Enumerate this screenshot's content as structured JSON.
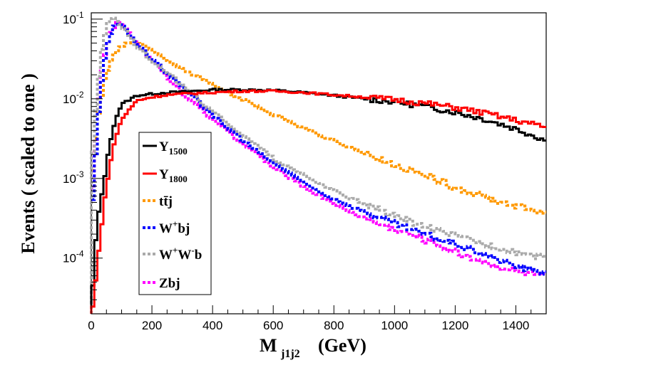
{
  "chart_data": {
    "type": "line",
    "title": "",
    "xlabel": "M",
    "xlabel_sub": "j1j2",
    "xlabel_unit": "(GeV)",
    "ylabel": "Events  ( scaled to one )",
    "xlim": [
      0,
      1500
    ],
    "ylim": [
      2e-05,
      0.12
    ],
    "yscale": "log",
    "x_ticks": [
      "0",
      "200",
      "400",
      "600",
      "800",
      "1000",
      "1200",
      "1400"
    ],
    "y_ticks": [
      {
        "base": "10",
        "exp": "-1"
      },
      {
        "base": "10",
        "exp": "-2"
      },
      {
        "base": "10",
        "exp": "-3"
      },
      {
        "base": "10",
        "exp": "-4"
      }
    ],
    "grid": false,
    "legend_position": "left-center",
    "series": [
      {
        "name": "Y_1500",
        "legend_main": "Y",
        "legend_sub": "1500",
        "color": "#000000",
        "style": "solid",
        "x": [
          0,
          10,
          20,
          30,
          40,
          50,
          60,
          70,
          80,
          100,
          150,
          200,
          250,
          300,
          400,
          500,
          600,
          700,
          800,
          900,
          1000,
          1100,
          1200,
          1300,
          1400,
          1500
        ],
        "y": [
          2e-05,
          0.0001,
          0.00028,
          0.0005,
          0.0008,
          0.0015,
          0.0025,
          0.004,
          0.0055,
          0.0085,
          0.011,
          0.0115,
          0.012,
          0.0122,
          0.013,
          0.013,
          0.0128,
          0.012,
          0.011,
          0.01,
          0.0092,
          0.008,
          0.0068,
          0.0055,
          0.0042,
          0.003
        ]
      },
      {
        "name": "Y_1800",
        "legend_main": "Y",
        "legend_sub": "1800",
        "color": "#ff0000",
        "style": "solid",
        "x": [
          0,
          10,
          20,
          30,
          40,
          50,
          60,
          70,
          80,
          100,
          150,
          200,
          250,
          300,
          400,
          500,
          600,
          700,
          800,
          900,
          1000,
          1100,
          1200,
          1300,
          1400,
          1500
        ],
        "y": [
          2e-05,
          3e-05,
          9e-05,
          0.00018,
          0.0004,
          0.0008,
          0.0013,
          0.0022,
          0.0032,
          0.0055,
          0.0095,
          0.0105,
          0.0112,
          0.0115,
          0.012,
          0.0125,
          0.0125,
          0.012,
          0.0112,
          0.0105,
          0.0098,
          0.0088,
          0.0078,
          0.0066,
          0.0054,
          0.0044
        ]
      },
      {
        "name": "ttbar_j",
        "legend_main": "tt̄j",
        "legend_sub": "",
        "color": "#ff9900",
        "style": "dotted",
        "x": [
          0,
          10,
          20,
          30,
          40,
          50,
          60,
          70,
          80,
          100,
          120,
          140,
          160,
          200,
          250,
          300,
          400,
          500,
          600,
          700,
          800,
          900,
          1000,
          1100,
          1200,
          1300,
          1400,
          1500
        ],
        "y": [
          0.0008,
          0.002,
          0.005,
          0.009,
          0.014,
          0.02,
          0.027,
          0.033,
          0.039,
          0.046,
          0.05,
          0.052,
          0.05,
          0.04,
          0.03,
          0.024,
          0.015,
          0.0097,
          0.0063,
          0.0043,
          0.003,
          0.0021,
          0.0015,
          0.0011,
          0.00078,
          0.00058,
          0.00045,
          0.00037
        ]
      },
      {
        "name": "W+bj",
        "legend_main": "W",
        "legend_sup": "+",
        "legend_tail": "bj",
        "color": "#0000ff",
        "style": "dotted",
        "x": [
          0,
          10,
          20,
          30,
          40,
          50,
          60,
          70,
          80,
          90,
          100,
          120,
          150,
          200,
          250,
          300,
          400,
          500,
          600,
          700,
          800,
          900,
          1000,
          1100,
          1200,
          1300,
          1400,
          1500
        ],
        "y": [
          0.0003,
          0.001,
          0.004,
          0.012,
          0.025,
          0.042,
          0.06,
          0.075,
          0.085,
          0.09,
          0.085,
          0.07,
          0.05,
          0.032,
          0.021,
          0.014,
          0.0062,
          0.003,
          0.0016,
          0.0009,
          0.00055,
          0.00038,
          0.00027,
          0.0002,
          0.00015,
          0.00011,
          7.8e-05,
          6.5e-05
        ]
      },
      {
        "name": "W+W-b",
        "legend_main": "W",
        "legend_sup": "+",
        "legend_mid": "W",
        "legend_sup2": "-",
        "legend_tail": "b",
        "color": "#aaaaaa",
        "style": "dotted",
        "x": [
          0,
          10,
          20,
          30,
          40,
          50,
          60,
          70,
          80,
          90,
          100,
          120,
          150,
          200,
          250,
          300,
          400,
          500,
          600,
          700,
          800,
          900,
          1000,
          1100,
          1200,
          1300,
          1400,
          1500
        ],
        "y": [
          0.0012,
          0.004,
          0.012,
          0.03,
          0.055,
          0.08,
          0.098,
          0.105,
          0.1,
          0.092,
          0.082,
          0.065,
          0.046,
          0.03,
          0.021,
          0.015,
          0.007,
          0.0034,
          0.0018,
          0.0011,
          0.0007,
          0.00048,
          0.00034,
          0.00025,
          0.00019,
          0.00015,
          0.00012,
          0.0001
        ]
      },
      {
        "name": "Zbj",
        "legend_main": "Zbj",
        "legend_sub": "",
        "color": "#ff00ff",
        "style": "dotted",
        "x": [
          0,
          10,
          20,
          30,
          40,
          50,
          60,
          70,
          80,
          90,
          100,
          120,
          150,
          200,
          250,
          300,
          400,
          500,
          600,
          700,
          800,
          900,
          1000,
          1100,
          1200,
          1300,
          1400,
          1500
        ],
        "y": [
          0.0004,
          0.0015,
          0.006,
          0.016,
          0.03,
          0.045,
          0.06,
          0.074,
          0.085,
          0.092,
          0.088,
          0.072,
          0.05,
          0.031,
          0.019,
          0.012,
          0.0055,
          0.0027,
          0.0014,
          0.0008,
          0.00048,
          0.00032,
          0.00023,
          0.00017,
          0.00012,
          8.8e-05,
          6.8e-05,
          6e-05
        ]
      }
    ]
  }
}
